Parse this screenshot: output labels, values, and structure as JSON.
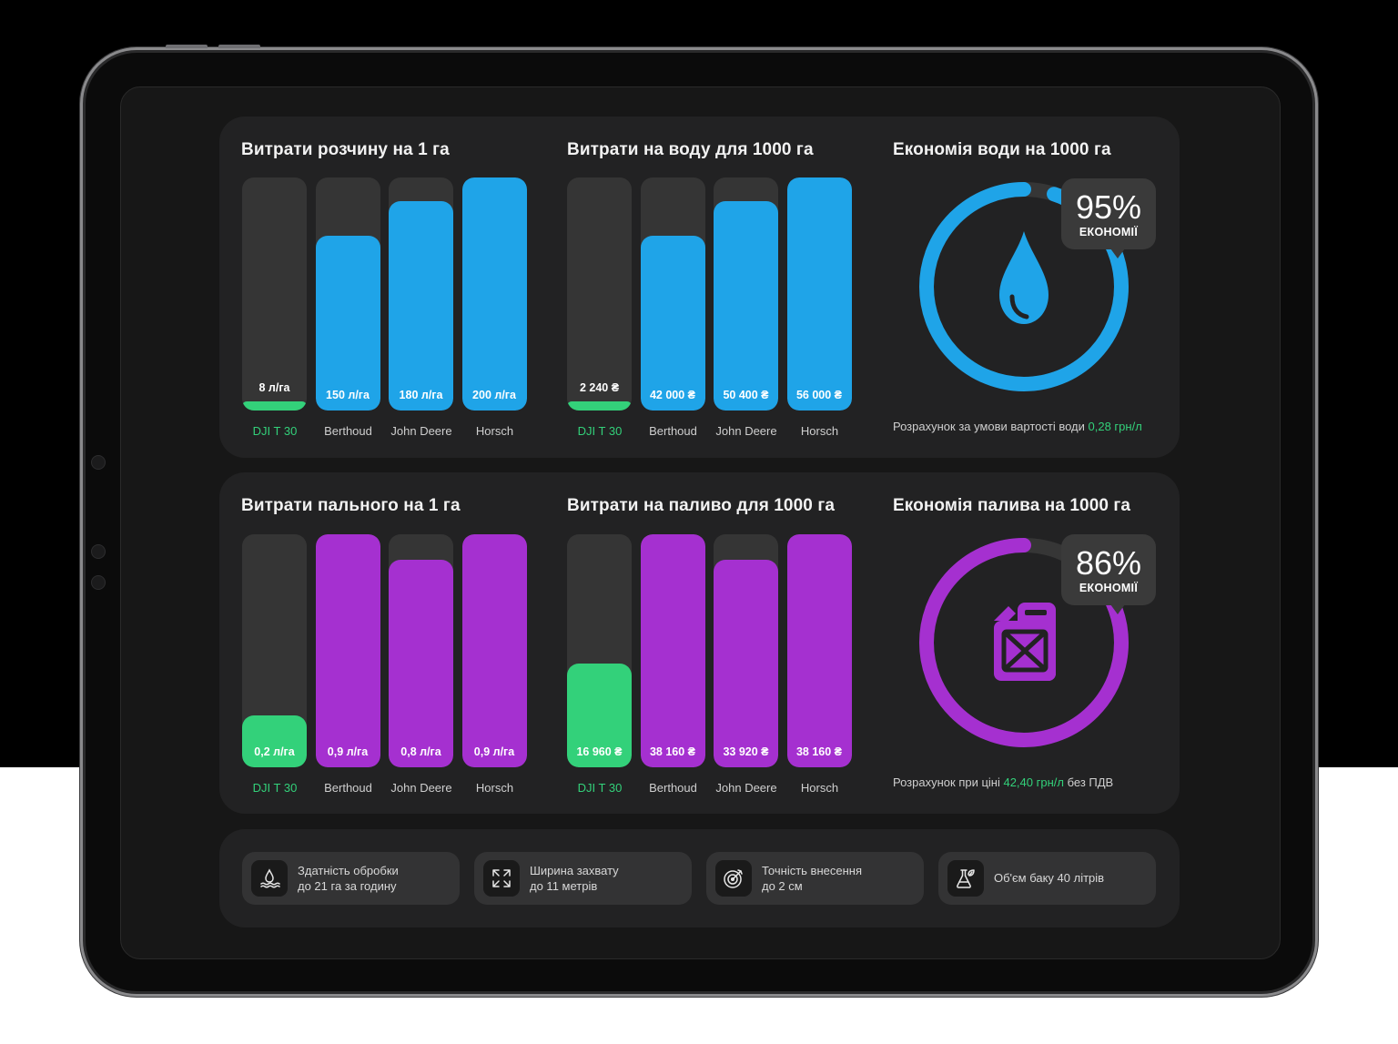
{
  "colors": {
    "blue": "#1fa4e8",
    "purple": "#a530d0",
    "green": "#33d17a",
    "track": "#353535"
  },
  "water": {
    "usage": {
      "title": "Витрати розчину на 1 га",
      "bars": [
        {
          "label": "DJI T 30",
          "value_text": "8 л/га",
          "value": 8,
          "highlight": true
        },
        {
          "label": "Berthoud",
          "value_text": "150 л/га",
          "value": 150,
          "highlight": false
        },
        {
          "label": "John Deere",
          "value_text": "180 л/га",
          "value": 180,
          "highlight": false
        },
        {
          "label": "Horsch",
          "value_text": "200 л/га",
          "value": 200,
          "highlight": false
        }
      ]
    },
    "cost": {
      "title": "Витрати на воду для 1000 га",
      "bars": [
        {
          "label": "DJI T 30",
          "value_text": "2 240 ₴",
          "value": 2240,
          "highlight": true
        },
        {
          "label": "Berthoud",
          "value_text": "42 000 ₴",
          "value": 42000,
          "highlight": false
        },
        {
          "label": "John Deere",
          "value_text": "50 400 ₴",
          "value": 50400,
          "highlight": false
        },
        {
          "label": "Horsch",
          "value_text": "56 000 ₴",
          "value": 56000,
          "highlight": false
        }
      ]
    },
    "savings": {
      "title": "Економія води на 1000 га",
      "percent_text": "95%",
      "percent": 95,
      "caption": "ЕКОНОМІЇ",
      "icon": "water-drop-icon",
      "note_prefix": "Розрахунок за умови вартості води ",
      "note_highlight": "0,28 грн/л",
      "note_suffix": ""
    }
  },
  "fuel": {
    "usage": {
      "title": "Витрати пального на 1 га",
      "bars": [
        {
          "label": "DJI T 30",
          "value_text": "0,2 л/га",
          "value": 0.2,
          "highlight": true
        },
        {
          "label": "Berthoud",
          "value_text": "0,9 л/га",
          "value": 0.9,
          "highlight": false
        },
        {
          "label": "John Deere",
          "value_text": "0,8 л/га",
          "value": 0.8,
          "highlight": false
        },
        {
          "label": "Horsch",
          "value_text": "0,9 л/га",
          "value": 0.9,
          "highlight": false
        }
      ]
    },
    "cost": {
      "title": "Витрати на паливо для 1000 га",
      "bars": [
        {
          "label": "DJI T 30",
          "value_text": "16 960 ₴",
          "value": 16960,
          "highlight": true
        },
        {
          "label": "Berthoud",
          "value_text": "38 160 ₴",
          "value": 38160,
          "highlight": false
        },
        {
          "label": "John Deere",
          "value_text": "33 920 ₴",
          "value": 33920,
          "highlight": false
        },
        {
          "label": "Horsch",
          "value_text": "38 160 ₴",
          "value": 38160,
          "highlight": false
        }
      ]
    },
    "savings": {
      "title": "Економія палива на 1000 га",
      "percent_text": "86%",
      "percent": 86,
      "caption": "ЕКОНОМІЇ",
      "icon": "fuel-canister-icon",
      "note_prefix": "Розрахунок при ціні ",
      "note_highlight": "42,40 грн/л",
      "note_suffix": " без ПДВ"
    }
  },
  "features": [
    {
      "icon": "water-waves-icon",
      "line1": "Здатність обробки",
      "line2": "до 21 га за годину"
    },
    {
      "icon": "expand-arrows-icon",
      "line1": "Ширина захвату",
      "line2": "до 11 метрів"
    },
    {
      "icon": "target-icon",
      "line1": "Точність внесення",
      "line2": "до 2 см"
    },
    {
      "icon": "flask-icon",
      "line1": "Об'єм баку 40 літрів",
      "line2": ""
    }
  ]
}
